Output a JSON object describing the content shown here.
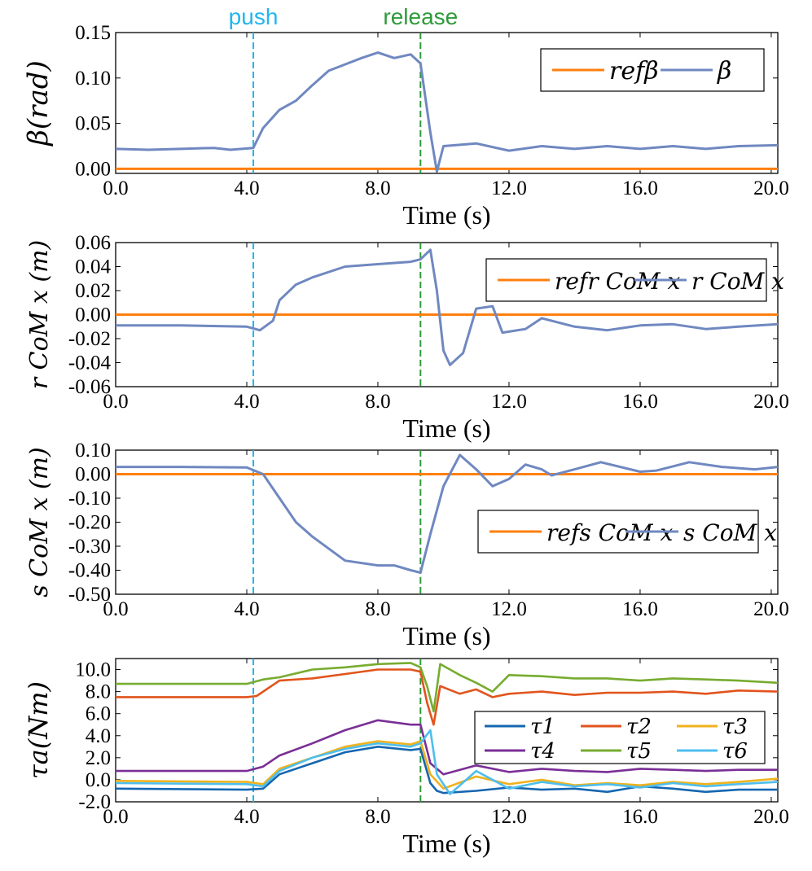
{
  "colors": {
    "ref": "#ff7f0e",
    "measured": "#7088c0",
    "push": "#22b5f0",
    "release": "#2e9a3a",
    "tau1": "#1566b0",
    "tau2": "#e1541c",
    "tau3": "#efb21e",
    "tau4": "#7a2f96",
    "tau5": "#77ac30",
    "tau6": "#4dbeee"
  },
  "events": {
    "push": {
      "label": "push",
      "t": 4.2
    },
    "release": {
      "label": "release",
      "t": 9.3
    }
  },
  "chart_data": [
    {
      "type": "line",
      "xlabel": "Time (s)",
      "ylabel": "β(rad)",
      "xlim": [
        0,
        20.2
      ],
      "ylim": [
        -0.005,
        0.15
      ],
      "xticks": [
        "0.0",
        "4.0",
        "8.0",
        "12.0",
        "16.0",
        "20.0"
      ],
      "yticks": [
        "0.00",
        "0.05",
        "0.10",
        "0.15"
      ],
      "legend": {
        "ref": "refβ",
        "meas": "β"
      },
      "series": [
        {
          "name": "ref β",
          "points": [
            [
              0,
              0
            ],
            [
              20.2,
              0
            ]
          ]
        },
        {
          "name": "β",
          "points": [
            [
              0,
              0.022
            ],
            [
              1,
              0.021
            ],
            [
              2,
              0.022
            ],
            [
              3,
              0.023
            ],
            [
              3.5,
              0.021
            ],
            [
              4.2,
              0.023
            ],
            [
              4.5,
              0.045
            ],
            [
              5,
              0.065
            ],
            [
              5.5,
              0.075
            ],
            [
              6,
              0.092
            ],
            [
              6.5,
              0.108
            ],
            [
              7,
              0.115
            ],
            [
              7.5,
              0.122
            ],
            [
              8,
              0.128
            ],
            [
              8.5,
              0.122
            ],
            [
              9,
              0.126
            ],
            [
              9.3,
              0.116
            ],
            [
              9.6,
              0.04
            ],
            [
              9.8,
              -0.003
            ],
            [
              10,
              0.025
            ],
            [
              11,
              0.028
            ],
            [
              12,
              0.02
            ],
            [
              13,
              0.025
            ],
            [
              14,
              0.022
            ],
            [
              15,
              0.025
            ],
            [
              16,
              0.022
            ],
            [
              17,
              0.025
            ],
            [
              18,
              0.022
            ],
            [
              19,
              0.025
            ],
            [
              20.2,
              0.026
            ]
          ]
        }
      ]
    },
    {
      "type": "line",
      "xlabel": "Time (s)",
      "ylabel": "r CoM x (m)",
      "xlim": [
        0,
        20.2
      ],
      "ylim": [
        -0.06,
        0.06
      ],
      "xticks": [
        "0.0",
        "4.0",
        "8.0",
        "12.0",
        "16.0",
        "20.0"
      ],
      "yticks": [
        "-0.06",
        "-0.04",
        "-0.02",
        "0.00",
        "0.02",
        "0.04",
        "0.06"
      ],
      "legend": {
        "ref": "refr CoM x",
        "meas": "r CoM x"
      },
      "series": [
        {
          "name": "ref r CoM x",
          "points": [
            [
              0,
              0
            ],
            [
              20.2,
              0
            ]
          ]
        },
        {
          "name": "r CoM x",
          "points": [
            [
              0,
              -0.009
            ],
            [
              2,
              -0.009
            ],
            [
              4,
              -0.01
            ],
            [
              4.4,
              -0.013
            ],
            [
              4.8,
              -0.005
            ],
            [
              5,
              0.012
            ],
            [
              5.5,
              0.025
            ],
            [
              6,
              0.031
            ],
            [
              7,
              0.04
            ],
            [
              8,
              0.042
            ],
            [
              9,
              0.044
            ],
            [
              9.3,
              0.046
            ],
            [
              9.6,
              0.054
            ],
            [
              9.8,
              0.02
            ],
            [
              10,
              -0.03
            ],
            [
              10.2,
              -0.042
            ],
            [
              10.6,
              -0.032
            ],
            [
              11,
              0.005
            ],
            [
              11.5,
              0.007
            ],
            [
              11.8,
              -0.015
            ],
            [
              12.5,
              -0.012
            ],
            [
              13,
              -0.003
            ],
            [
              14,
              -0.01
            ],
            [
              15,
              -0.013
            ],
            [
              16,
              -0.009
            ],
            [
              17,
              -0.008
            ],
            [
              18,
              -0.012
            ],
            [
              19,
              -0.01
            ],
            [
              20.2,
              -0.008
            ]
          ]
        }
      ]
    },
    {
      "type": "line",
      "xlabel": "Time (s)",
      "ylabel": "s CoM x (m)",
      "xlim": [
        0,
        20.2
      ],
      "ylim": [
        -0.5,
        0.1
      ],
      "xticks": [
        "0.0",
        "4.0",
        "8.0",
        "12.0",
        "16.0",
        "20.0"
      ],
      "yticks": [
        "-0.50",
        "-0.40",
        "-0.30",
        "-0.20",
        "-0.10",
        "0.00",
        "0.10"
      ],
      "legend": {
        "ref": "refs CoM x",
        "meas": "s CoM x"
      },
      "series": [
        {
          "name": "ref s CoM x",
          "points": [
            [
              0,
              0
            ],
            [
              20.2,
              0
            ]
          ]
        },
        {
          "name": "s CoM x",
          "points": [
            [
              0,
              0.03
            ],
            [
              2,
              0.03
            ],
            [
              4,
              0.028
            ],
            [
              4.5,
              0.0
            ],
            [
              5,
              -0.1
            ],
            [
              5.5,
              -0.2
            ],
            [
              6,
              -0.26
            ],
            [
              7,
              -0.36
            ],
            [
              8,
              -0.38
            ],
            [
              8.5,
              -0.38
            ],
            [
              9,
              -0.4
            ],
            [
              9.3,
              -0.41
            ],
            [
              9.6,
              -0.25
            ],
            [
              10,
              -0.05
            ],
            [
              10.5,
              0.08
            ],
            [
              11,
              0.02
            ],
            [
              11.5,
              -0.05
            ],
            [
              12,
              -0.02
            ],
            [
              12.5,
              0.04
            ],
            [
              13,
              0.02
            ],
            [
              13.3,
              -0.005
            ],
            [
              14,
              0.02
            ],
            [
              14.8,
              0.05
            ],
            [
              16,
              0.01
            ],
            [
              16.5,
              0.015
            ],
            [
              17.5,
              0.05
            ],
            [
              18.5,
              0.03
            ],
            [
              19.5,
              0.02
            ],
            [
              20.2,
              0.03
            ]
          ]
        }
      ]
    },
    {
      "type": "line",
      "xlabel": "Time (s)",
      "ylabel": "τa(Nm)",
      "xlim": [
        0,
        20.2
      ],
      "ylim": [
        -2.0,
        11.0
      ],
      "xticks": [
        "0.0",
        "4.0",
        "8.0",
        "12.0",
        "16.0",
        "20.0"
      ],
      "yticks": [
        "-2.0",
        "0.0",
        "2.0",
        "4.0",
        "6.0",
        "8.0",
        "10.0"
      ],
      "legend_entries": [
        "τ1",
        "τ2",
        "τ3",
        "τ4",
        "τ5",
        "τ6"
      ],
      "series": [
        {
          "name": "τ1",
          "points": [
            [
              0,
              -0.8
            ],
            [
              4,
              -0.9
            ],
            [
              4.5,
              -0.8
            ],
            [
              5,
              0.5
            ],
            [
              6,
              1.5
            ],
            [
              7,
              2.5
            ],
            [
              8,
              3.0
            ],
            [
              9,
              2.7
            ],
            [
              9.3,
              2.8
            ],
            [
              9.6,
              -0.3
            ],
            [
              9.8,
              -1.0
            ],
            [
              10,
              -1.2
            ],
            [
              11,
              -1.0
            ],
            [
              12,
              -0.7
            ],
            [
              13,
              -0.9
            ],
            [
              14,
              -0.8
            ],
            [
              15,
              -1.1
            ],
            [
              16,
              -0.6
            ],
            [
              17,
              -0.8
            ],
            [
              18,
              -1.1
            ],
            [
              19,
              -0.9
            ],
            [
              20.2,
              -0.9
            ]
          ]
        },
        {
          "name": "τ2",
          "points": [
            [
              0,
              7.5
            ],
            [
              4,
              7.5
            ],
            [
              4.3,
              7.6
            ],
            [
              5,
              9.0
            ],
            [
              6,
              9.2
            ],
            [
              7,
              9.6
            ],
            [
              8,
              10.0
            ],
            [
              9,
              10.0
            ],
            [
              9.3,
              9.8
            ],
            [
              9.5,
              7.0
            ],
            [
              9.7,
              5.0
            ],
            [
              9.9,
              8.5
            ],
            [
              10.5,
              7.8
            ],
            [
              11,
              8.2
            ],
            [
              11.5,
              7.5
            ],
            [
              12,
              7.8
            ],
            [
              13,
              8.0
            ],
            [
              14,
              7.7
            ],
            [
              15,
              7.9
            ],
            [
              16,
              7.9
            ],
            [
              17,
              8.0
            ],
            [
              18,
              7.8
            ],
            [
              19,
              8.1
            ],
            [
              20.2,
              8.0
            ]
          ]
        },
        {
          "name": "τ3",
          "points": [
            [
              0,
              -0.1
            ],
            [
              4,
              -0.2
            ],
            [
              4.5,
              -0.4
            ],
            [
              5,
              1.0
            ],
            [
              6,
              2.0
            ],
            [
              7,
              3.0
            ],
            [
              8,
              3.5
            ],
            [
              9,
              3.2
            ],
            [
              9.3,
              3.5
            ],
            [
              9.6,
              0.5
            ],
            [
              10,
              -0.8
            ],
            [
              11,
              0.3
            ],
            [
              12,
              -0.4
            ],
            [
              13,
              0.0
            ],
            [
              14,
              -0.5
            ],
            [
              15,
              -0.3
            ],
            [
              16,
              -0.5
            ],
            [
              17,
              -0.2
            ],
            [
              18,
              -0.4
            ],
            [
              19,
              -0.2
            ],
            [
              20.2,
              0.1
            ]
          ]
        },
        {
          "name": "τ4",
          "points": [
            [
              0,
              0.8
            ],
            [
              4,
              0.8
            ],
            [
              4.5,
              1.2
            ],
            [
              5,
              2.2
            ],
            [
              6,
              3.3
            ],
            [
              7,
              4.5
            ],
            [
              8,
              5.4
            ],
            [
              9,
              5.0
            ],
            [
              9.3,
              5.0
            ],
            [
              9.6,
              1.5
            ],
            [
              10,
              0.5
            ],
            [
              11,
              1.3
            ],
            [
              12,
              0.7
            ],
            [
              13,
              1.0
            ],
            [
              14,
              0.8
            ],
            [
              15,
              0.7
            ],
            [
              16,
              1.0
            ],
            [
              17,
              0.9
            ],
            [
              18,
              0.8
            ],
            [
              19,
              0.9
            ],
            [
              20.2,
              0.9
            ]
          ]
        },
        {
          "name": "τ5",
          "points": [
            [
              0,
              8.7
            ],
            [
              4,
              8.7
            ],
            [
              4.5,
              9.1
            ],
            [
              5,
              9.3
            ],
            [
              6,
              10.0
            ],
            [
              7,
              10.2
            ],
            [
              8,
              10.5
            ],
            [
              9,
              10.6
            ],
            [
              9.3,
              10.2
            ],
            [
              9.5,
              8.5
            ],
            [
              9.7,
              6.2
            ],
            [
              9.9,
              10.5
            ],
            [
              10.5,
              9.5
            ],
            [
              11,
              8.8
            ],
            [
              11.5,
              8.0
            ],
            [
              12,
              9.5
            ],
            [
              13,
              9.4
            ],
            [
              14,
              9.2
            ],
            [
              15,
              9.2
            ],
            [
              16,
              9.0
            ],
            [
              17,
              9.2
            ],
            [
              18,
              9.1
            ],
            [
              19,
              9.0
            ],
            [
              20.2,
              8.8
            ]
          ]
        },
        {
          "name": "τ6",
          "points": [
            [
              0,
              -0.3
            ],
            [
              4,
              -0.4
            ],
            [
              4.5,
              -0.6
            ],
            [
              5,
              0.8
            ],
            [
              6,
              2.0
            ],
            [
              7,
              2.8
            ],
            [
              8,
              3.3
            ],
            [
              9,
              3.0
            ],
            [
              9.3,
              3.3
            ],
            [
              9.6,
              4.5
            ],
            [
              9.8,
              0.5
            ],
            [
              10.2,
              -1.3
            ],
            [
              11,
              0.8
            ],
            [
              12,
              -0.8
            ],
            [
              13,
              -0.2
            ],
            [
              14,
              -0.6
            ],
            [
              15,
              -0.4
            ],
            [
              16,
              -0.7
            ],
            [
              17,
              -0.3
            ],
            [
              18,
              -0.6
            ],
            [
              19,
              -0.4
            ],
            [
              20.2,
              -0.2
            ]
          ]
        }
      ]
    }
  ]
}
